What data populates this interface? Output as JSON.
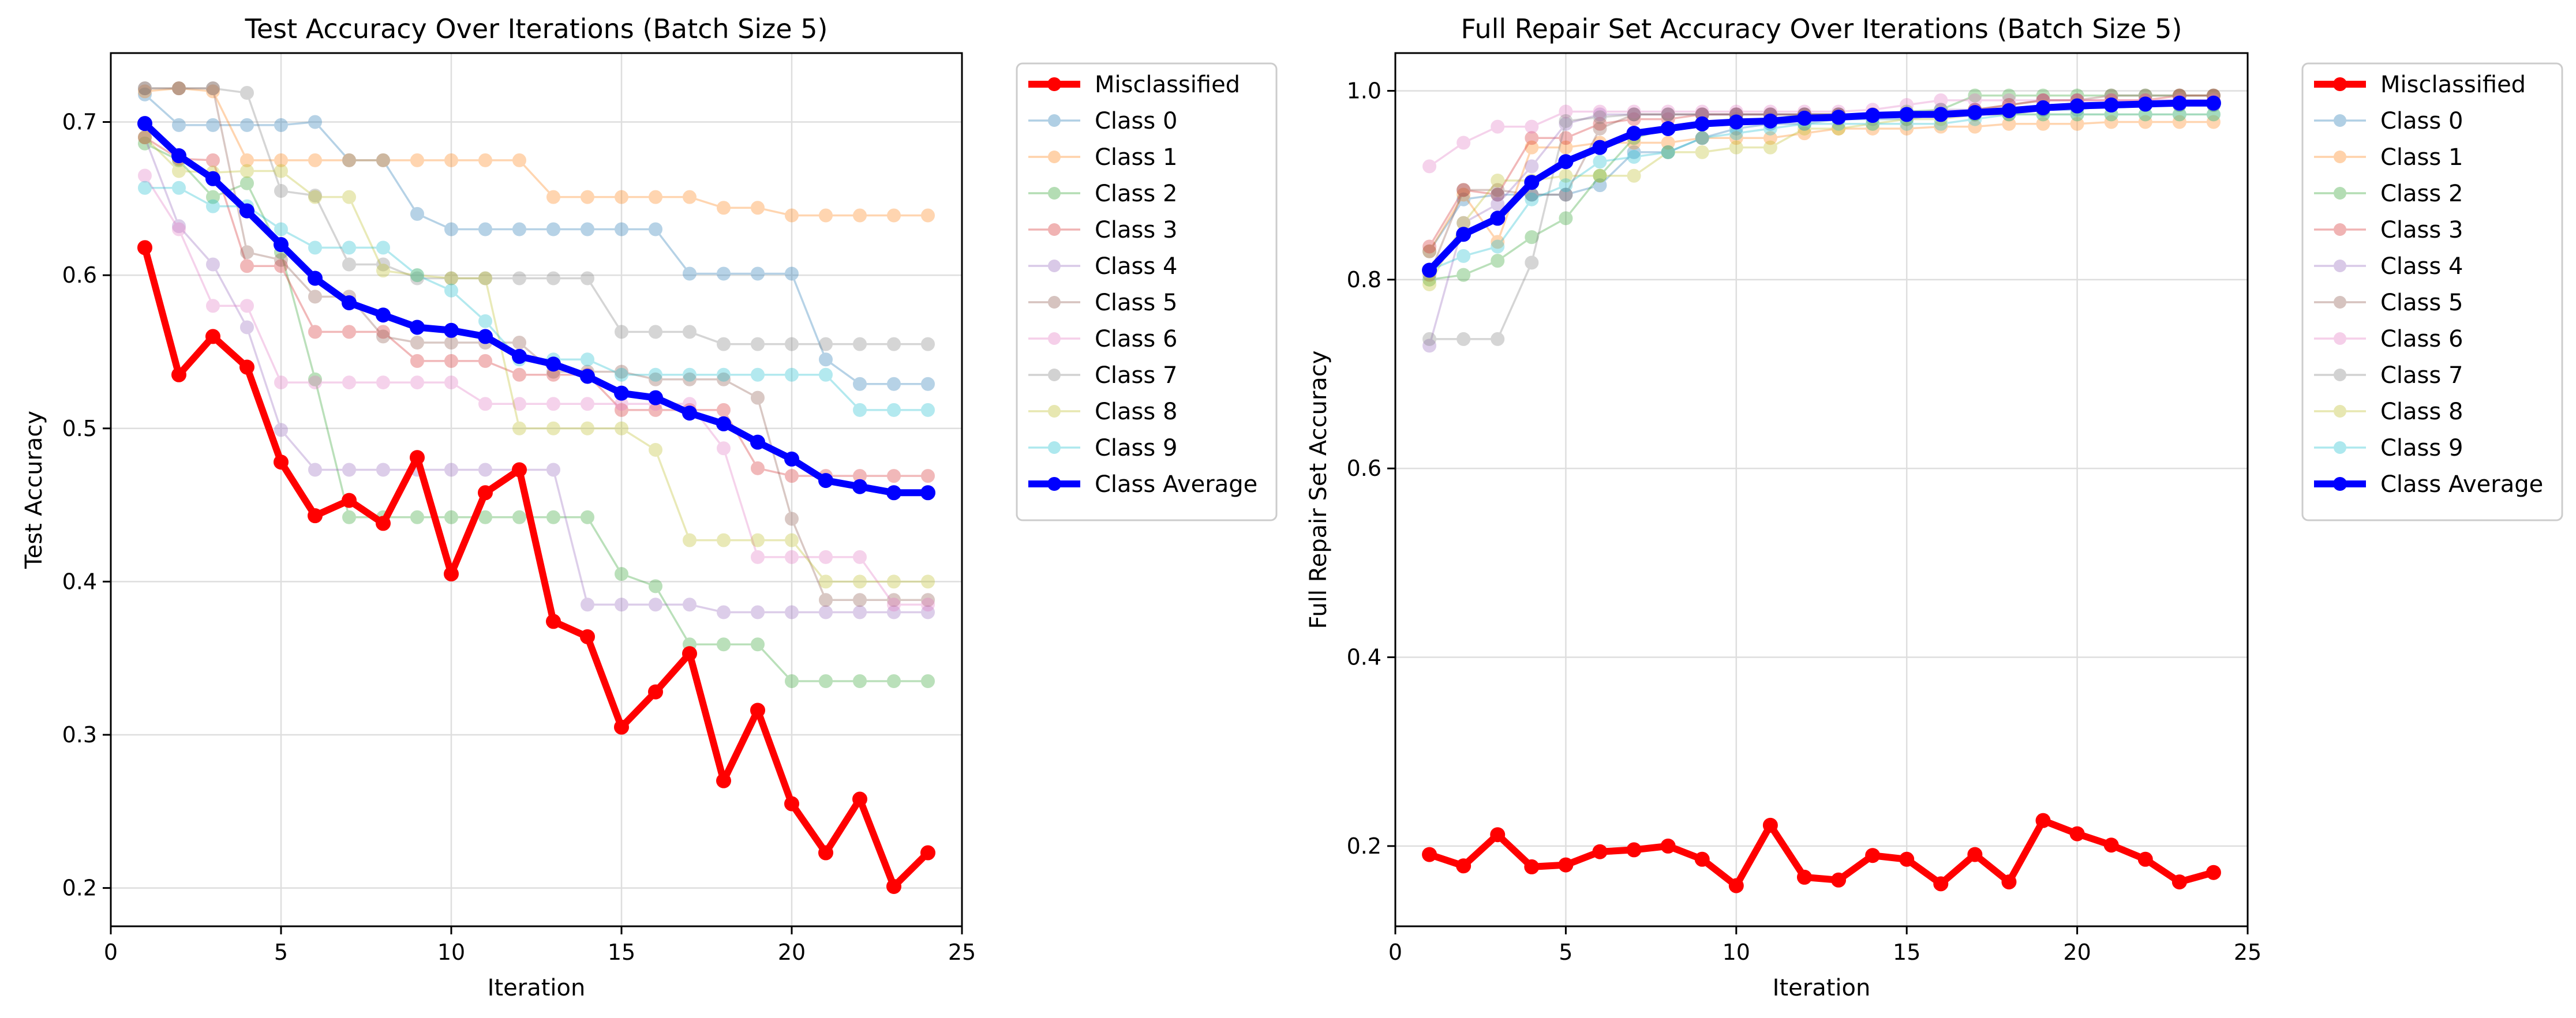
{
  "figure": {
    "charts": [
      {
        "type": "line",
        "title": "Test Accuracy Over Iterations (Batch Size 5)",
        "xlabel": "Iteration",
        "ylabel": "Test Accuracy",
        "xlim": [
          0,
          25
        ],
        "ylim": [
          0.175,
          0.745
        ],
        "xticks": [
          0,
          5,
          10,
          15,
          20,
          25
        ],
        "yticks": [
          0.2,
          0.3,
          0.4,
          0.5,
          0.6,
          0.7
        ],
        "ytick_decimals": 1,
        "grid": true,
        "legend_position": "outside-top-right",
        "x": [
          1,
          2,
          3,
          4,
          5,
          6,
          7,
          8,
          9,
          10,
          11,
          12,
          13,
          14,
          15,
          16,
          17,
          18,
          19,
          20,
          21,
          22,
          23,
          24
        ],
        "series": [
          {
            "name": "Misclassified",
            "color": "#ff0000",
            "emphasis": true,
            "values": [
              0.618,
              0.535,
              0.56,
              0.54,
              0.478,
              0.443,
              0.453,
              0.438,
              0.481,
              0.405,
              0.458,
              0.473,
              0.374,
              0.364,
              0.305,
              0.328,
              0.353,
              0.27,
              0.316,
              0.255,
              0.223,
              0.258,
              0.201,
              0.223
            ]
          },
          {
            "name": "Class 0",
            "color": "#1f77b4",
            "values": [
              0.718,
              0.698,
              0.698,
              0.698,
              0.698,
              0.7,
              0.675,
              0.675,
              0.64,
              0.63,
              0.63,
              0.63,
              0.63,
              0.63,
              0.63,
              0.63,
              0.601,
              0.601,
              0.601,
              0.601,
              0.545,
              0.529,
              0.529,
              0.529
            ]
          },
          {
            "name": "Class 1",
            "color": "#ff7f0e",
            "values": [
              0.72,
              0.722,
              0.72,
              0.675,
              0.675,
              0.675,
              0.675,
              0.675,
              0.675,
              0.675,
              0.675,
              0.675,
              0.651,
              0.651,
              0.651,
              0.651,
              0.651,
              0.644,
              0.644,
              0.639,
              0.639,
              0.639,
              0.639,
              0.639
            ]
          },
          {
            "name": "Class 2",
            "color": "#2ca02c",
            "values": [
              0.686,
              0.675,
              0.651,
              0.66,
              0.615,
              0.532,
              0.442,
              0.442,
              0.442,
              0.442,
              0.442,
              0.442,
              0.442,
              0.442,
              0.405,
              0.397,
              0.359,
              0.359,
              0.359,
              0.335,
              0.335,
              0.335,
              0.335,
              0.335
            ]
          },
          {
            "name": "Class 3",
            "color": "#d62728",
            "values": [
              0.69,
              0.676,
              0.675,
              0.606,
              0.606,
              0.563,
              0.563,
              0.563,
              0.544,
              0.544,
              0.544,
              0.535,
              0.535,
              0.535,
              0.512,
              0.512,
              0.512,
              0.512,
              0.474,
              0.469,
              0.469,
              0.469,
              0.469,
              0.469
            ]
          },
          {
            "name": "Class 4",
            "color": "#9467bd",
            "values": [
              0.69,
              0.632,
              0.607,
              0.566,
              0.499,
              0.473,
              0.473,
              0.473,
              0.473,
              0.473,
              0.473,
              0.473,
              0.473,
              0.385,
              0.385,
              0.385,
              0.385,
              0.38,
              0.38,
              0.38,
              0.38,
              0.38,
              0.38,
              0.38
            ]
          },
          {
            "name": "Class 5",
            "color": "#8c564b",
            "values": [
              0.722,
              0.722,
              0.722,
              0.615,
              0.61,
              0.586,
              0.586,
              0.56,
              0.556,
              0.556,
              0.556,
              0.556,
              0.537,
              0.537,
              0.537,
              0.532,
              0.532,
              0.532,
              0.52,
              0.441,
              0.388,
              0.388,
              0.388,
              0.388
            ]
          },
          {
            "name": "Class 6",
            "color": "#e377c2",
            "values": [
              0.665,
              0.63,
              0.58,
              0.58,
              0.53,
              0.53,
              0.53,
              0.53,
              0.53,
              0.53,
              0.516,
              0.516,
              0.516,
              0.516,
              0.516,
              0.516,
              0.516,
              0.487,
              0.416,
              0.416,
              0.416,
              0.416,
              0.385,
              0.385
            ]
          },
          {
            "name": "Class 7",
            "color": "#7f7f7f",
            "values": [
              0.722,
              0.722,
              0.722,
              0.719,
              0.655,
              0.652,
              0.607,
              0.607,
              0.598,
              0.598,
              0.598,
              0.598,
              0.598,
              0.598,
              0.563,
              0.563,
              0.563,
              0.555,
              0.555,
              0.555,
              0.555,
              0.555,
              0.555,
              0.555
            ]
          },
          {
            "name": "Class 8",
            "color": "#bcbd22",
            "values": [
              0.69,
              0.668,
              0.667,
              0.668,
              0.668,
              0.651,
              0.651,
              0.603,
              0.6,
              0.598,
              0.598,
              0.5,
              0.5,
              0.5,
              0.5,
              0.486,
              0.427,
              0.427,
              0.427,
              0.427,
              0.4,
              0.4,
              0.4,
              0.4
            ]
          },
          {
            "name": "Class 9",
            "color": "#17becf",
            "values": [
              0.657,
              0.657,
              0.645,
              0.645,
              0.63,
              0.618,
              0.618,
              0.618,
              0.6,
              0.59,
              0.57,
              0.545,
              0.545,
              0.545,
              0.535,
              0.535,
              0.535,
              0.535,
              0.535,
              0.535,
              0.535,
              0.512,
              0.512,
              0.512
            ]
          },
          {
            "name": "Class Average",
            "color": "#0000ff",
            "emphasis": true,
            "values": [
              0.699,
              0.678,
              0.663,
              0.642,
              0.62,
              0.598,
              0.582,
              0.574,
              0.566,
              0.564,
              0.56,
              0.547,
              0.542,
              0.534,
              0.523,
              0.52,
              0.51,
              0.503,
              0.491,
              0.48,
              0.466,
              0.462,
              0.458,
              0.458
            ]
          }
        ]
      },
      {
        "type": "line",
        "title": "Full Repair Set Accuracy Over Iterations (Batch Size 5)",
        "xlabel": "Iteration",
        "ylabel": "Full Repair Set Accuracy",
        "xlim": [
          0,
          25
        ],
        "ylim": [
          0.115,
          1.04
        ],
        "xticks": [
          0,
          5,
          10,
          15,
          20,
          25
        ],
        "yticks": [
          0.2,
          0.4,
          0.6,
          0.8,
          1.0
        ],
        "ytick_decimals": 1,
        "grid": true,
        "legend_position": "outside-top-right",
        "x": [
          1,
          2,
          3,
          4,
          5,
          6,
          7,
          8,
          9,
          10,
          11,
          12,
          13,
          14,
          15,
          16,
          17,
          18,
          19,
          20,
          21,
          22,
          23,
          24
        ],
        "series": [
          {
            "name": "Misclassified",
            "color": "#ff0000",
            "emphasis": true,
            "values": [
              0.191,
              0.179,
              0.212,
              0.178,
              0.18,
              0.194,
              0.196,
              0.2,
              0.186,
              0.158,
              0.222,
              0.167,
              0.164,
              0.19,
              0.186,
              0.16,
              0.191,
              0.162,
              0.227,
              0.213,
              0.201,
              0.186,
              0.162,
              0.172
            ]
          },
          {
            "name": "Class 0",
            "color": "#1f77b4",
            "values": [
              0.83,
              0.885,
              0.89,
              0.89,
              0.89,
              0.9,
              0.935,
              0.935,
              0.95,
              0.96,
              0.965,
              0.965,
              0.97,
              0.97,
              0.97,
              0.975,
              0.975,
              0.98,
              0.98,
              0.98,
              0.985,
              0.985,
              0.985,
              0.985
            ]
          },
          {
            "name": "Class 1",
            "color": "#ff7f0e",
            "values": [
              0.83,
              0.89,
              0.84,
              0.94,
              0.94,
              0.945,
              0.945,
              0.945,
              0.95,
              0.95,
              0.95,
              0.955,
              0.96,
              0.96,
              0.96,
              0.962,
              0.962,
              0.965,
              0.965,
              0.965,
              0.967,
              0.967,
              0.967,
              0.967
            ]
          },
          {
            "name": "Class 2",
            "color": "#2ca02c",
            "values": [
              0.8,
              0.805,
              0.82,
              0.845,
              0.865,
              0.91,
              0.95,
              0.96,
              0.965,
              0.97,
              0.97,
              0.975,
              0.975,
              0.975,
              0.978,
              0.98,
              0.995,
              0.995,
              0.995,
              0.995,
              0.995,
              0.995,
              0.995,
              0.995
            ]
          },
          {
            "name": "Class 3",
            "color": "#d62728",
            "values": [
              0.835,
              0.895,
              0.89,
              0.95,
              0.95,
              0.965,
              0.97,
              0.97,
              0.975,
              0.975,
              0.975,
              0.975,
              0.975,
              0.975,
              0.975,
              0.975,
              0.98,
              0.985,
              0.99,
              0.99,
              0.99,
              0.99,
              0.995,
              0.995
            ]
          },
          {
            "name": "Class 4",
            "color": "#9467bd",
            "values": [
              0.73,
              0.86,
              0.88,
              0.92,
              0.965,
              0.975,
              0.975,
              0.975,
              0.975,
              0.975,
              0.975,
              0.975,
              0.975,
              0.975,
              0.975,
              0.98,
              0.98,
              0.98,
              0.98,
              0.985,
              0.985,
              0.985,
              0.985,
              0.985
            ]
          },
          {
            "name": "Class 5",
            "color": "#8c564b",
            "values": [
              0.805,
              0.895,
              0.895,
              0.89,
              0.89,
              0.96,
              0.975,
              0.975,
              0.975,
              0.975,
              0.975,
              0.975,
              0.975,
              0.975,
              0.975,
              0.975,
              0.98,
              0.985,
              0.99,
              0.99,
              0.995,
              0.995,
              0.995,
              0.995
            ]
          },
          {
            "name": "Class 6",
            "color": "#e377c2",
            "values": [
              0.92,
              0.945,
              0.962,
              0.962,
              0.978,
              0.978,
              0.978,
              0.978,
              0.978,
              0.978,
              0.978,
              0.978,
              0.978,
              0.98,
              0.985,
              0.99,
              0.99,
              0.99,
              0.99,
              0.99,
              0.99,
              0.99,
              0.99,
              0.99
            ]
          },
          {
            "name": "Class 7",
            "color": "#7f7f7f",
            "values": [
              0.737,
              0.737,
              0.737,
              0.818,
              0.968,
              0.972,
              0.975,
              0.975,
              0.975,
              0.975,
              0.975,
              0.975,
              0.975,
              0.975,
              0.975,
              0.975,
              0.975,
              0.975,
              0.98,
              0.985,
              0.985,
              0.985,
              0.985,
              0.985
            ]
          },
          {
            "name": "Class 8",
            "color": "#bcbd22",
            "values": [
              0.795,
              0.86,
              0.905,
              0.905,
              0.91,
              0.91,
              0.91,
              0.935,
              0.935,
              0.94,
              0.94,
              0.96,
              0.96,
              0.965,
              0.97,
              0.97,
              0.975,
              0.975,
              0.975,
              0.975,
              0.975,
              0.975,
              0.975,
              0.975
            ]
          },
          {
            "name": "Class 9",
            "color": "#17becf",
            "values": [
              0.81,
              0.825,
              0.835,
              0.885,
              0.9,
              0.925,
              0.93,
              0.935,
              0.95,
              0.955,
              0.96,
              0.965,
              0.965,
              0.965,
              0.965,
              0.965,
              0.97,
              0.975,
              0.975,
              0.975,
              0.975,
              0.975,
              0.975,
              0.975
            ]
          },
          {
            "name": "Class Average",
            "color": "#0000ff",
            "emphasis": true,
            "values": [
              0.81,
              0.848,
              0.865,
              0.903,
              0.925,
              0.94,
              0.955,
              0.96,
              0.965,
              0.967,
              0.968,
              0.971,
              0.972,
              0.974,
              0.975,
              0.975,
              0.977,
              0.979,
              0.982,
              0.984,
              0.985,
              0.986,
              0.987,
              0.987
            ]
          }
        ]
      }
    ]
  }
}
